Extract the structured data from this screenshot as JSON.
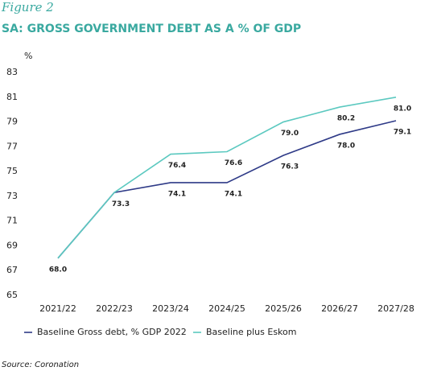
{
  "chart_data": {
    "type": "line",
    "figure_label": "Figure 2",
    "title": "SA: GROSS GOVERNMENT DEBT AS A % OF GDP",
    "y_unit": "%",
    "source": "Source: Coronation",
    "categories": [
      "2021/22",
      "2022/23",
      "2023/24",
      "2024/25",
      "2025/26",
      "2026/27",
      "2027/28"
    ],
    "series": [
      {
        "name": "Baseline Gross debt, % GDP 2022",
        "color": "#2e3a87",
        "values": [
          68.0,
          73.3,
          74.1,
          74.1,
          76.3,
          78.0,
          79.1
        ],
        "value_labels": [
          "68.0",
          "73.3",
          "74.1",
          "74.1",
          "76.3",
          "78.0",
          "79.1"
        ]
      },
      {
        "name": "Baseline plus Eskom",
        "color": "#5cc9c0",
        "values": [
          68.0,
          73.3,
          76.4,
          76.6,
          79.0,
          80.2,
          81.0
        ],
        "value_labels": [
          null,
          null,
          "76.4",
          "76.6",
          "79.0",
          "80.2",
          "81.0"
        ]
      }
    ],
    "ylim": [
      65,
      83
    ],
    "yticks": [
      65,
      67,
      69,
      71,
      73,
      75,
      77,
      79,
      81,
      83
    ],
    "legend": "bottom"
  }
}
